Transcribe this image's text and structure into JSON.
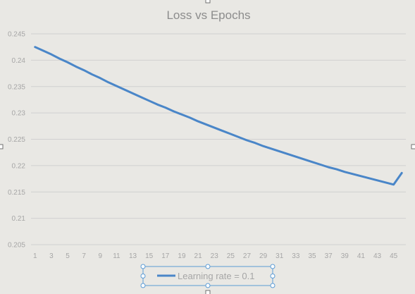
{
  "chart_data": {
    "type": "line",
    "title": "Loss vs Epochs",
    "xlabel": "",
    "ylabel": "",
    "x": [
      1,
      2,
      3,
      4,
      5,
      6,
      7,
      8,
      9,
      10,
      11,
      12,
      13,
      14,
      15,
      16,
      17,
      18,
      19,
      20,
      21,
      22,
      23,
      24,
      25,
      26,
      27,
      28,
      29,
      30,
      31,
      32,
      33,
      34,
      35,
      36,
      37,
      38,
      39,
      40,
      41,
      42,
      43,
      44,
      45,
      46
    ],
    "x_tick_labels": [
      "1",
      "3",
      "5",
      "7",
      "9",
      "11",
      "13",
      "15",
      "17",
      "19",
      "21",
      "23",
      "25",
      "27",
      "29",
      "31",
      "33",
      "35",
      "37",
      "39",
      "41",
      "43",
      "45"
    ],
    "y_tick_labels": [
      "0.205",
      "0.21",
      "0.215",
      "0.22",
      "0.225",
      "0.23",
      "0.235",
      "0.24",
      "0.245"
    ],
    "ylim": [
      0.205,
      0.245
    ],
    "grid": true,
    "legend_position": "bottom",
    "series": [
      {
        "name": "Learning rate = 0.1",
        "color": "#4a86c8",
        "values": [
          0.2425,
          0.2418,
          0.2411,
          0.2403,
          0.2396,
          0.2388,
          0.2381,
          0.2373,
          0.2366,
          0.2358,
          0.2351,
          0.2344,
          0.2337,
          0.233,
          0.2323,
          0.2316,
          0.231,
          0.2303,
          0.2297,
          0.2291,
          0.2284,
          0.2278,
          0.2272,
          0.2266,
          0.226,
          0.2254,
          0.2248,
          0.2243,
          0.2237,
          0.2232,
          0.2227,
          0.2222,
          0.2217,
          0.2212,
          0.2207,
          0.2202,
          0.2197,
          0.2193,
          0.2188,
          0.2184,
          0.218,
          0.2176,
          0.2172,
          0.2168,
          0.2164,
          0.2186
        ]
      }
    ]
  },
  "colors": {
    "plot_background": "#e9e8e4",
    "gridline": "#d0d0d0",
    "text": "#a6a6a6",
    "selection": "#5b9bd5"
  }
}
